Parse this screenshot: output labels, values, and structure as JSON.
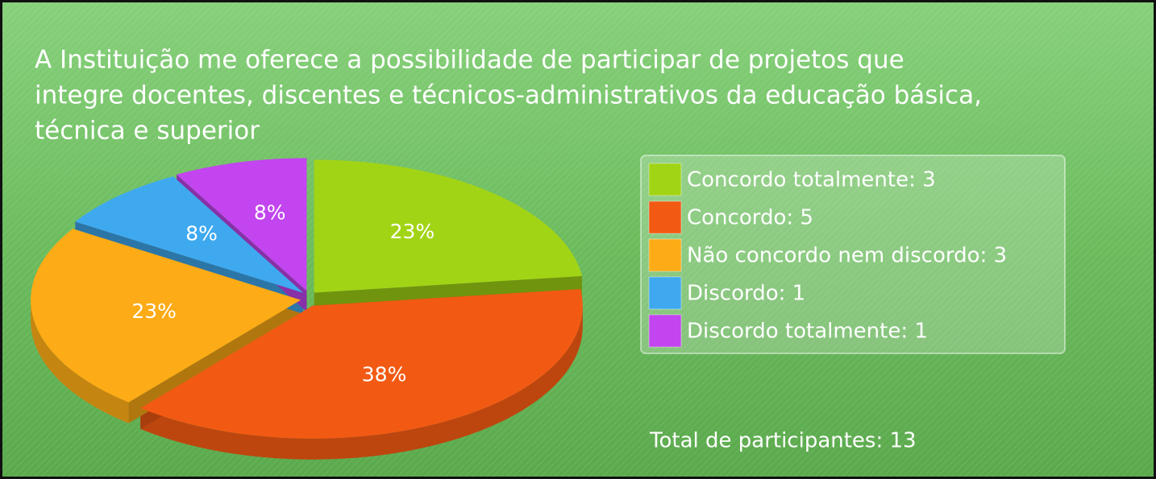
{
  "chart_data": {
    "type": "pie3d",
    "title": [
      "A Instituição me oferece a possibilidade de participar de projetos que",
      "integre docentes, discentes e técnicos-administrativos da educação básica,",
      "técnica e superior"
    ],
    "categories": [
      "Concordo totalmente: 3",
      "Concordo: 5",
      "Não concordo nem discordo: 3",
      "Discordo: 1",
      "Discordo totalmente: 1"
    ],
    "values": [
      23,
      38,
      23,
      8,
      8
    ],
    "value_labels": [
      "23%",
      "38%",
      "23%",
      "8%",
      "8%"
    ],
    "colors": [
      "#a2d416",
      "#f25a14",
      "#fdab16",
      "#3fa9f0",
      "#c245ef"
    ],
    "legend": "right",
    "total": "Total de participantes: 13"
  }
}
